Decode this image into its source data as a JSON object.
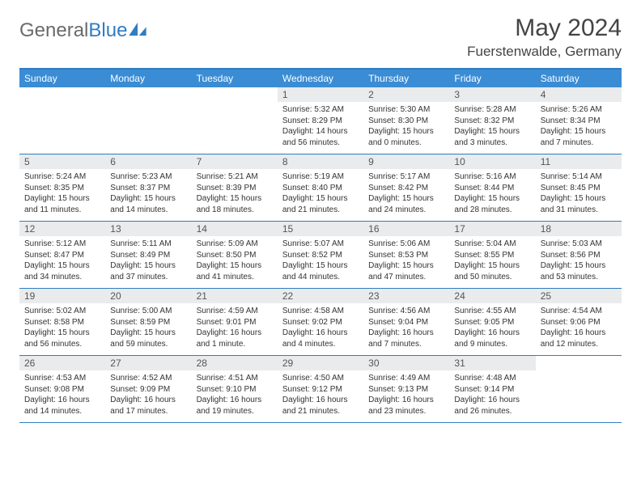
{
  "brand": {
    "part1": "General",
    "part2": "Blue"
  },
  "title": "May 2024",
  "location": "Fuerstenwalde, Germany",
  "colors": {
    "header_bg": "#3a8cd4",
    "border": "#2f7dc2",
    "daynum_bg": "#e9ebec",
    "text": "#333333",
    "logo_gray": "#6a6a6a"
  },
  "typography": {
    "title_fontsize": 30,
    "location_fontsize": 17,
    "dow_fontsize": 12,
    "daynum_fontsize": 12,
    "info_fontsize": 10
  },
  "layout": {
    "columns": 7,
    "rows": 5
  },
  "days_of_week": [
    "Sunday",
    "Monday",
    "Tuesday",
    "Wednesday",
    "Thursday",
    "Friday",
    "Saturday"
  ],
  "weeks": [
    [
      {
        "n": "",
        "sunrise": "",
        "sunset": "",
        "daylight": ""
      },
      {
        "n": "",
        "sunrise": "",
        "sunset": "",
        "daylight": ""
      },
      {
        "n": "",
        "sunrise": "",
        "sunset": "",
        "daylight": ""
      },
      {
        "n": "1",
        "sunrise": "Sunrise: 5:32 AM",
        "sunset": "Sunset: 8:29 PM",
        "daylight": "Daylight: 14 hours and 56 minutes."
      },
      {
        "n": "2",
        "sunrise": "Sunrise: 5:30 AM",
        "sunset": "Sunset: 8:30 PM",
        "daylight": "Daylight: 15 hours and 0 minutes."
      },
      {
        "n": "3",
        "sunrise": "Sunrise: 5:28 AM",
        "sunset": "Sunset: 8:32 PM",
        "daylight": "Daylight: 15 hours and 3 minutes."
      },
      {
        "n": "4",
        "sunrise": "Sunrise: 5:26 AM",
        "sunset": "Sunset: 8:34 PM",
        "daylight": "Daylight: 15 hours and 7 minutes."
      }
    ],
    [
      {
        "n": "5",
        "sunrise": "Sunrise: 5:24 AM",
        "sunset": "Sunset: 8:35 PM",
        "daylight": "Daylight: 15 hours and 11 minutes."
      },
      {
        "n": "6",
        "sunrise": "Sunrise: 5:23 AM",
        "sunset": "Sunset: 8:37 PM",
        "daylight": "Daylight: 15 hours and 14 minutes."
      },
      {
        "n": "7",
        "sunrise": "Sunrise: 5:21 AM",
        "sunset": "Sunset: 8:39 PM",
        "daylight": "Daylight: 15 hours and 18 minutes."
      },
      {
        "n": "8",
        "sunrise": "Sunrise: 5:19 AM",
        "sunset": "Sunset: 8:40 PM",
        "daylight": "Daylight: 15 hours and 21 minutes."
      },
      {
        "n": "9",
        "sunrise": "Sunrise: 5:17 AM",
        "sunset": "Sunset: 8:42 PM",
        "daylight": "Daylight: 15 hours and 24 minutes."
      },
      {
        "n": "10",
        "sunrise": "Sunrise: 5:16 AM",
        "sunset": "Sunset: 8:44 PM",
        "daylight": "Daylight: 15 hours and 28 minutes."
      },
      {
        "n": "11",
        "sunrise": "Sunrise: 5:14 AM",
        "sunset": "Sunset: 8:45 PM",
        "daylight": "Daylight: 15 hours and 31 minutes."
      }
    ],
    [
      {
        "n": "12",
        "sunrise": "Sunrise: 5:12 AM",
        "sunset": "Sunset: 8:47 PM",
        "daylight": "Daylight: 15 hours and 34 minutes."
      },
      {
        "n": "13",
        "sunrise": "Sunrise: 5:11 AM",
        "sunset": "Sunset: 8:49 PM",
        "daylight": "Daylight: 15 hours and 37 minutes."
      },
      {
        "n": "14",
        "sunrise": "Sunrise: 5:09 AM",
        "sunset": "Sunset: 8:50 PM",
        "daylight": "Daylight: 15 hours and 41 minutes."
      },
      {
        "n": "15",
        "sunrise": "Sunrise: 5:07 AM",
        "sunset": "Sunset: 8:52 PM",
        "daylight": "Daylight: 15 hours and 44 minutes."
      },
      {
        "n": "16",
        "sunrise": "Sunrise: 5:06 AM",
        "sunset": "Sunset: 8:53 PM",
        "daylight": "Daylight: 15 hours and 47 minutes."
      },
      {
        "n": "17",
        "sunrise": "Sunrise: 5:04 AM",
        "sunset": "Sunset: 8:55 PM",
        "daylight": "Daylight: 15 hours and 50 minutes."
      },
      {
        "n": "18",
        "sunrise": "Sunrise: 5:03 AM",
        "sunset": "Sunset: 8:56 PM",
        "daylight": "Daylight: 15 hours and 53 minutes."
      }
    ],
    [
      {
        "n": "19",
        "sunrise": "Sunrise: 5:02 AM",
        "sunset": "Sunset: 8:58 PM",
        "daylight": "Daylight: 15 hours and 56 minutes."
      },
      {
        "n": "20",
        "sunrise": "Sunrise: 5:00 AM",
        "sunset": "Sunset: 8:59 PM",
        "daylight": "Daylight: 15 hours and 59 minutes."
      },
      {
        "n": "21",
        "sunrise": "Sunrise: 4:59 AM",
        "sunset": "Sunset: 9:01 PM",
        "daylight": "Daylight: 16 hours and 1 minute."
      },
      {
        "n": "22",
        "sunrise": "Sunrise: 4:58 AM",
        "sunset": "Sunset: 9:02 PM",
        "daylight": "Daylight: 16 hours and 4 minutes."
      },
      {
        "n": "23",
        "sunrise": "Sunrise: 4:56 AM",
        "sunset": "Sunset: 9:04 PM",
        "daylight": "Daylight: 16 hours and 7 minutes."
      },
      {
        "n": "24",
        "sunrise": "Sunrise: 4:55 AM",
        "sunset": "Sunset: 9:05 PM",
        "daylight": "Daylight: 16 hours and 9 minutes."
      },
      {
        "n": "25",
        "sunrise": "Sunrise: 4:54 AM",
        "sunset": "Sunset: 9:06 PM",
        "daylight": "Daylight: 16 hours and 12 minutes."
      }
    ],
    [
      {
        "n": "26",
        "sunrise": "Sunrise: 4:53 AM",
        "sunset": "Sunset: 9:08 PM",
        "daylight": "Daylight: 16 hours and 14 minutes."
      },
      {
        "n": "27",
        "sunrise": "Sunrise: 4:52 AM",
        "sunset": "Sunset: 9:09 PM",
        "daylight": "Daylight: 16 hours and 17 minutes."
      },
      {
        "n": "28",
        "sunrise": "Sunrise: 4:51 AM",
        "sunset": "Sunset: 9:10 PM",
        "daylight": "Daylight: 16 hours and 19 minutes."
      },
      {
        "n": "29",
        "sunrise": "Sunrise: 4:50 AM",
        "sunset": "Sunset: 9:12 PM",
        "daylight": "Daylight: 16 hours and 21 minutes."
      },
      {
        "n": "30",
        "sunrise": "Sunrise: 4:49 AM",
        "sunset": "Sunset: 9:13 PM",
        "daylight": "Daylight: 16 hours and 23 minutes."
      },
      {
        "n": "31",
        "sunrise": "Sunrise: 4:48 AM",
        "sunset": "Sunset: 9:14 PM",
        "daylight": "Daylight: 16 hours and 26 minutes."
      },
      {
        "n": "",
        "sunrise": "",
        "sunset": "",
        "daylight": ""
      }
    ]
  ]
}
